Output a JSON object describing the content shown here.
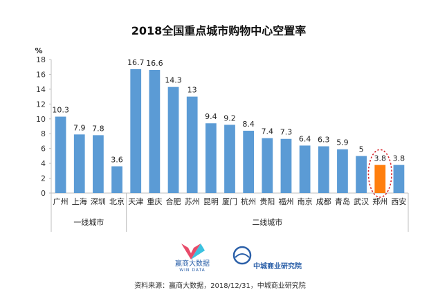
{
  "chart_data": {
    "type": "bar",
    "title": "2018全国重点城市购物中心空置率",
    "ylabel": "%",
    "ylim": [
      0,
      18
    ],
    "yticks": [
      0,
      2,
      4,
      6,
      8,
      10,
      12,
      14,
      16,
      18
    ],
    "grid": false,
    "categories": [
      "广州",
      "上海",
      "深圳",
      "北京",
      "天津",
      "重庆",
      "合肥",
      "苏州",
      "昆明",
      "厦门",
      "杭州",
      "贵阳",
      "福州",
      "南京",
      "成都",
      "青岛",
      "武汉",
      "郑州",
      "西安"
    ],
    "values": [
      10.3,
      7.9,
      7.8,
      3.6,
      16.7,
      16.6,
      14.3,
      13,
      9.4,
      9.2,
      8.4,
      7.4,
      7.3,
      6.4,
      6.3,
      5.9,
      5,
      3.8,
      3.8
    ],
    "value_labels": [
      "10.3",
      "7.9",
      "7.8",
      "3.6",
      "16.7",
      "16.6",
      "14.3",
      "13",
      "9.4",
      "9.2",
      "8.4",
      "7.4",
      "7.3",
      "6.4",
      "6.3",
      "5.9",
      "5",
      "3.8",
      "3.8"
    ],
    "groups": [
      {
        "label": "一线城市",
        "start": 0,
        "end": 3
      },
      {
        "label": "二线城市",
        "start": 4,
        "end": 18
      }
    ],
    "highlight_index": 17,
    "colors": {
      "bar": "#5b9bd5",
      "highlight": "#ff7f0e",
      "ellipse": "#d9262b"
    }
  },
  "logos": {
    "left_name": "赢商大数据",
    "left_sub": "WIN DATA",
    "right_name": "中城商业研究院"
  },
  "source": "资料来源：赢商大数据，2018/12/31，中城商业研究院"
}
